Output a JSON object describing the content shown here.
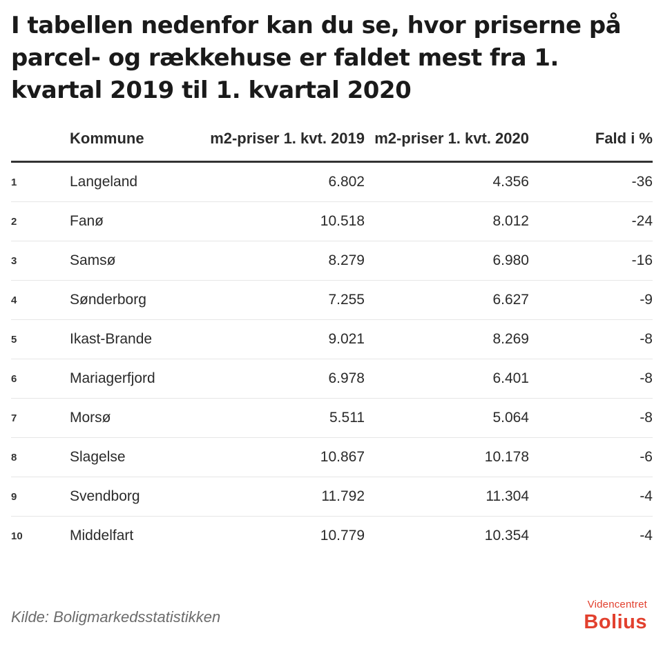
{
  "title": "I tabellen nedenfor kan du se, hvor priserne på parcel- og rækkehuse er faldet mest fra 1. kvartal 2019 til 1. kvartal 2020",
  "source": "Kilde: Boligmarkedsstatistikken",
  "logo": {
    "top": "Videncentret",
    "main": "Bolius"
  },
  "colors": {
    "accent": "#e2402e",
    "text": "#1d1d1d",
    "rule": "#333333"
  },
  "chart_data": {
    "type": "table",
    "columns": [
      "",
      "Kommune",
      "m2-priser 1. kvt. 2019",
      "m2-priser 1. kvt. 2020",
      "Fald i %"
    ],
    "rows": [
      [
        "1",
        "Langeland",
        "6.802",
        "4.356",
        "-36"
      ],
      [
        "2",
        "Fanø",
        "10.518",
        "8.012",
        "-24"
      ],
      [
        "3",
        "Samsø",
        "8.279",
        "6.980",
        "-16"
      ],
      [
        "4",
        "Sønderborg",
        "7.255",
        "6.627",
        "-9"
      ],
      [
        "5",
        "Ikast-Brande",
        "9.021",
        "8.269",
        "-8"
      ],
      [
        "6",
        "Mariagerfjord",
        "6.978",
        "6.401",
        "-8"
      ],
      [
        "7",
        "Morsø",
        "5.511",
        "5.064",
        "-8"
      ],
      [
        "8",
        "Slagelse",
        "10.867",
        "10.178",
        "-6"
      ],
      [
        "9",
        "Svendborg",
        "11.792",
        "11.304",
        "-4"
      ],
      [
        "10",
        "Middelfart",
        "10.779",
        "10.354",
        "-4"
      ]
    ]
  }
}
